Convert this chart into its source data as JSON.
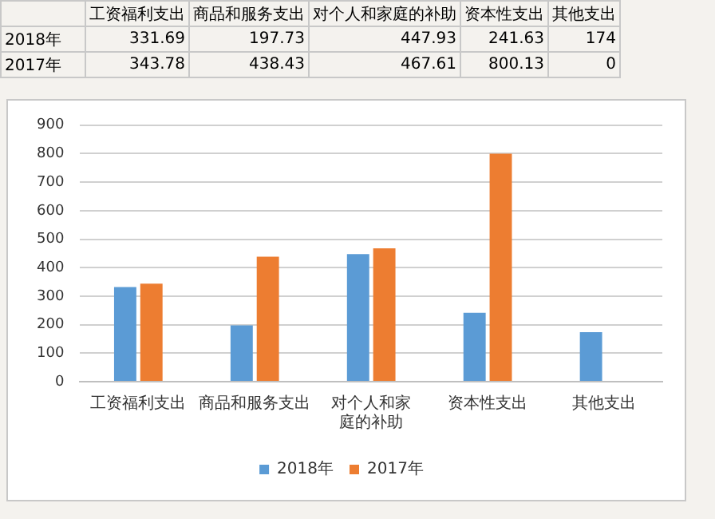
{
  "chart_data": {
    "type": "bar",
    "categories": [
      "工资福利支出",
      "商品和服务支出",
      "对个人和家庭的补助",
      "资本性支出",
      "其他支出"
    ],
    "series": [
      {
        "name": "2018年",
        "color": "#5b9bd5",
        "values": [
          331.69,
          197.73,
          447.93,
          241.63,
          174
        ]
      },
      {
        "name": "2017年",
        "color": "#ed7d31",
        "values": [
          343.78,
          438.43,
          467.61,
          800.13,
          0
        ]
      }
    ],
    "ylim": [
      0,
      900
    ],
    "yticks": [
      0,
      100,
      200,
      300,
      400,
      500,
      600,
      700,
      800,
      900
    ],
    "grid": "y",
    "legend": "bottom",
    "data_labels": true
  }
}
